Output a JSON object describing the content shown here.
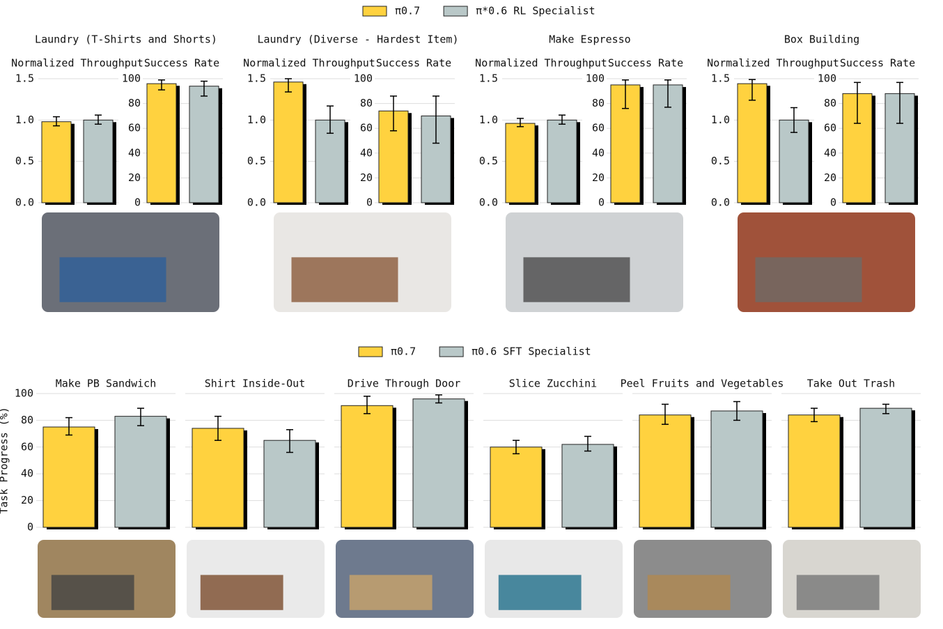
{
  "chart_data": [
    {
      "type": "bar",
      "series": [
        {
          "name": "π0.7",
          "color": "#ffd23f"
        },
        {
          "name": "π*0.6 RL Specialist",
          "color": "#b9c8c8"
        }
      ],
      "panels": [
        {
          "title": "Laundry (T-Shirts and Shorts)",
          "subplots": [
            {
              "ylabel": "Normalized Throughput",
              "ylim": [
                0,
                1.5
              ],
              "yticks": [
                {
                  "value": 0,
                  "label": "0.0"
                },
                0.5,
                {
                  "value": 1,
                  "label": "1.0"
                },
                1.5
              ],
              "values": [
                0.98,
                1.0
              ],
              "errors": [
                [
                  0.05,
                  0.06
                ],
                [
                  0.05,
                  0.06
                ]
              ]
            },
            {
              "ylabel": "Success Rate",
              "ylim": [
                0,
                100
              ],
              "yticks": [
                0,
                20,
                40,
                60,
                80,
                100
              ],
              "values": [
                96,
                94
              ],
              "errors": [
                [
                  5,
                  3
                ],
                [
                  8,
                  4
                ]
              ]
            }
          ]
        },
        {
          "title": "Laundry (Diverse - Hardest Item)",
          "subplots": [
            {
              "ylabel": "Normalized Throughput",
              "ylim": [
                0,
                1.5
              ],
              "yticks": [
                {
                  "value": 0,
                  "label": "0.0"
                },
                0.5,
                {
                  "value": 1,
                  "label": "1.0"
                },
                1.5
              ],
              "values": [
                1.46,
                1.0
              ],
              "errors": [
                [
                  0.12,
                  0.04
                ],
                [
                  0.16,
                  0.17
                ]
              ]
            },
            {
              "ylabel": "Success Rate",
              "ylim": [
                0,
                100
              ],
              "yticks": [
                0,
                20,
                40,
                60,
                80,
                100
              ],
              "values": [
                74,
                70
              ],
              "errors": [
                [
                  16,
                  12
                ],
                [
                  22,
                  16
                ]
              ]
            }
          ]
        },
        {
          "title": "Make Espresso",
          "subplots": [
            {
              "ylabel": "Normalized Throughput",
              "ylim": [
                0,
                1.5
              ],
              "yticks": [
                {
                  "value": 0,
                  "label": "0.0"
                },
                0.5,
                {
                  "value": 1,
                  "label": "1.0"
                },
                1.5
              ],
              "values": [
                0.96,
                1.0
              ],
              "errors": [
                [
                  0.04,
                  0.06
                ],
                [
                  0.05,
                  0.06
                ]
              ]
            },
            {
              "ylabel": "Success Rate",
              "ylim": [
                0,
                100
              ],
              "yticks": [
                0,
                20,
                40,
                60,
                80,
                100
              ],
              "values": [
                95,
                95
              ],
              "errors": [
                [
                  19,
                  4
                ],
                [
                  18,
                  4
                ]
              ]
            }
          ]
        },
        {
          "title": "Box Building",
          "subplots": [
            {
              "ylabel": "Normalized Throughput",
              "ylim": [
                0,
                1.5
              ],
              "yticks": [
                {
                  "value": 0,
                  "label": "0.0"
                },
                0.5,
                {
                  "value": 1,
                  "label": "1.0"
                },
                1.5
              ],
              "values": [
                1.44,
                1.0
              ],
              "errors": [
                [
                  0.2,
                  0.05
                ],
                [
                  0.15,
                  0.15
                ]
              ]
            },
            {
              "ylabel": "Success Rate",
              "ylim": [
                0,
                100
              ],
              "yticks": [
                0,
                20,
                40,
                60,
                80,
                100
              ],
              "values": [
                88,
                88
              ],
              "errors": [
                [
                  24,
                  9
                ],
                [
                  24,
                  9
                ]
              ]
            }
          ]
        }
      ]
    },
    {
      "type": "bar",
      "series": [
        {
          "name": "π0.7",
          "color": "#ffd23f"
        },
        {
          "name": "π0.6 SFT Specialist",
          "color": "#b9c8c8"
        }
      ],
      "ylabel": "Task Progress (%)",
      "ylim": [
        0,
        100
      ],
      "yticks": [
        0,
        20,
        40,
        60,
        80,
        100
      ],
      "panels": [
        {
          "title": "Make PB Sandwich",
          "values": [
            75,
            83
          ],
          "errors": [
            [
              6,
              7
            ],
            [
              7,
              6
            ]
          ]
        },
        {
          "title": "Shirt Inside-Out",
          "values": [
            74,
            65
          ],
          "errors": [
            [
              9,
              9
            ],
            [
              9,
              8
            ]
          ]
        },
        {
          "title": "Drive Through Door",
          "values": [
            91,
            96
          ],
          "errors": [
            [
              6,
              7
            ],
            [
              3,
              3
            ]
          ]
        },
        {
          "title": "Slice Zucchini",
          "values": [
            60,
            62
          ],
          "errors": [
            [
              5,
              5
            ],
            [
              5,
              6
            ]
          ]
        },
        {
          "title": "Peel Fruits and Vegetables",
          "values": [
            84,
            87
          ],
          "errors": [
            [
              7,
              8
            ],
            [
              7,
              7
            ]
          ]
        },
        {
          "title": "Take Out Trash",
          "values": [
            84,
            89
          ],
          "errors": [
            [
              5,
              5
            ],
            [
              4,
              3
            ]
          ]
        }
      ]
    }
  ]
}
